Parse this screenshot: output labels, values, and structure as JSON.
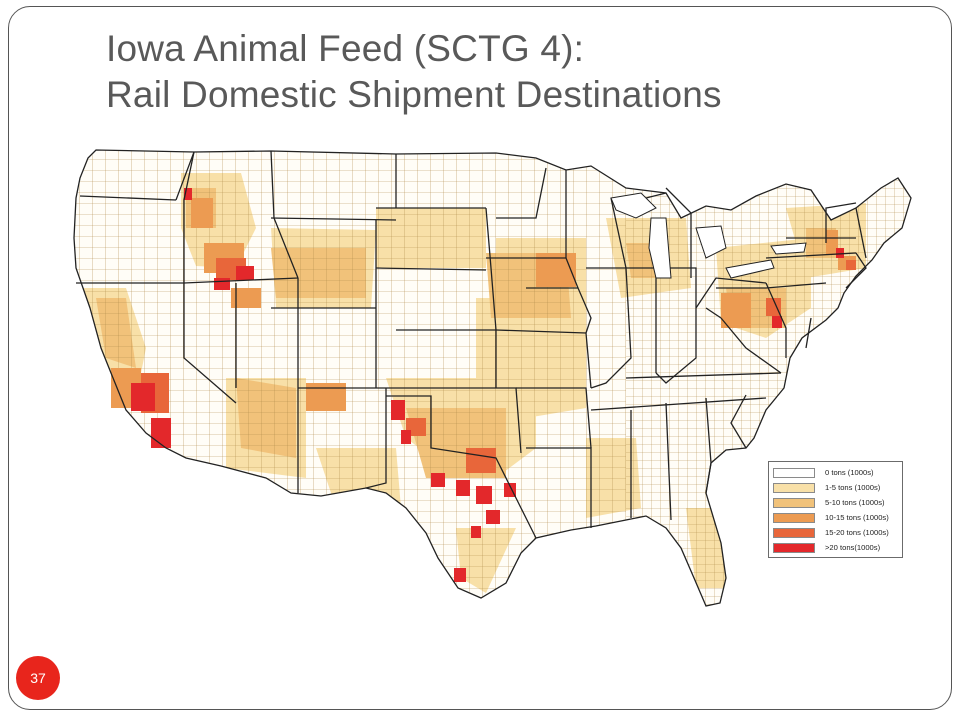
{
  "title": {
    "line1": "Iowa Animal Feed (SCTG 4):",
    "line2": "Rail Domestic Shipment Destinations"
  },
  "legend": [
    {
      "label": "0 tons (1000s)",
      "color": "#ffffff"
    },
    {
      "label": "1-5 tons (1000s)",
      "color": "#f8e0a8"
    },
    {
      "label": "5-10 tons (1000s)",
      "color": "#f1c27a"
    },
    {
      "label": "10-15 tons (1000s)",
      "color": "#ec9b52"
    },
    {
      "label": "15-20 tons (1000s)",
      "color": "#e8663a"
    },
    {
      "label": ">20 tons(1000s)",
      "color": "#e3282b"
    }
  ],
  "page_number": "37",
  "colors": {
    "accent": "#e8251c",
    "title_text": "#595959",
    "county_line": "#b08c4a",
    "state_line": "#222222"
  }
}
